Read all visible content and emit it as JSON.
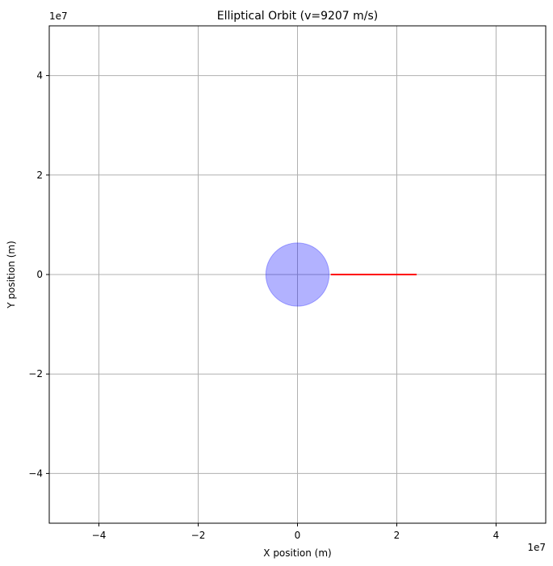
{
  "chart_data": {
    "type": "line",
    "title": "Elliptical Orbit (v=9207 m/s)",
    "xlabel": "X position (m)",
    "ylabel": "Y position (m)",
    "x_offset_label": "1e7",
    "y_offset_label": "1e7",
    "xlim": [
      -50000000.0,
      50000000.0
    ],
    "ylim": [
      -50000000.0,
      50000000.0
    ],
    "scale_factor": 10000000.0,
    "xticks": [
      -4,
      -2,
      0,
      2,
      4
    ],
    "yticks": [
      -4,
      -2,
      0,
      2,
      4
    ],
    "xtick_labels": [
      "−4",
      "−2",
      "0",
      "2",
      "4"
    ],
    "ytick_labels": [
      "−4",
      "−2",
      "0",
      "2",
      "4"
    ],
    "grid": true,
    "planet": {
      "center": [
        0,
        0
      ],
      "radius": 6371000.0,
      "color": "#0000ff",
      "alpha": 0.3
    },
    "series": [
      {
        "color": "#ff0000",
        "x": [
          6700000.0,
          12000000.0,
          18000000.0,
          24000000.0
        ],
        "y": [
          0,
          0,
          0,
          0
        ]
      }
    ]
  }
}
